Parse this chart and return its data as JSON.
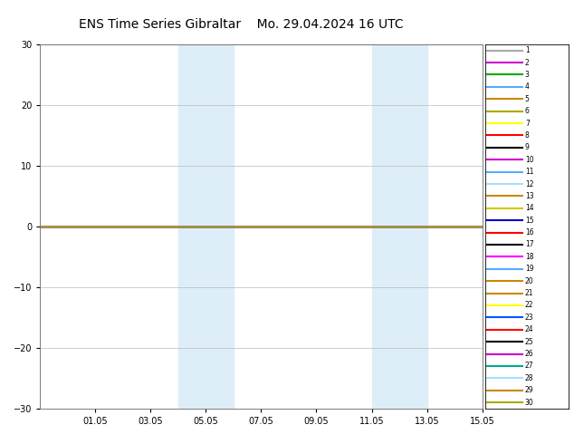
{
  "title_left": "ENS Time Series Gibraltar",
  "title_right": "Mo. 29.04.2024 16 UTC",
  "ylim": [
    -30,
    30
  ],
  "yticks": [
    -30,
    -20,
    -10,
    0,
    10,
    20,
    30
  ],
  "start_date": "2024-04-29",
  "end_date": "2024-05-15",
  "x_tick_labels": [
    "01.05",
    "03.05",
    "05.05",
    "07.05",
    "09.05",
    "11.05",
    "13.05",
    "15.05"
  ],
  "x_tick_dates": [
    "2024-05-01",
    "2024-05-03",
    "2024-05-05",
    "2024-05-07",
    "2024-05-09",
    "2024-05-11",
    "2024-05-13",
    "2024-05-15"
  ],
  "ensemble_colors": [
    "#aaaaaa",
    "#cc00cc",
    "#00aa00",
    "#55aaff",
    "#cc8800",
    "#aaaa00",
    "#ffff00",
    "#ff0000",
    "#000000",
    "#cc00cc",
    "#55aaff",
    "#aaddff",
    "#cc8800",
    "#cccc00",
    "#0000cc",
    "#ff0000",
    "#000000",
    "#ff00ff",
    "#55aaff",
    "#cc8800",
    "#cc8800",
    "#ffff00",
    "#0055ff",
    "#ff0000",
    "#000000",
    "#cc00cc",
    "#00aa88",
    "#aaddff",
    "#cc8800",
    "#aaaa00"
  ],
  "num_members": 30,
  "flat_value": 0,
  "weekend_shading_color": "#ddeef8",
  "background_color": "#ffffff",
  "grid_color": "#bbbbbb",
  "shaded_regions": [
    [
      "2024-05-04",
      "2024-05-06"
    ],
    [
      "2024-05-11",
      "2024-05-13"
    ]
  ],
  "line_width": 0.8,
  "title_fontsize": 10,
  "tick_fontsize": 7,
  "legend_fontsize": 5.5
}
